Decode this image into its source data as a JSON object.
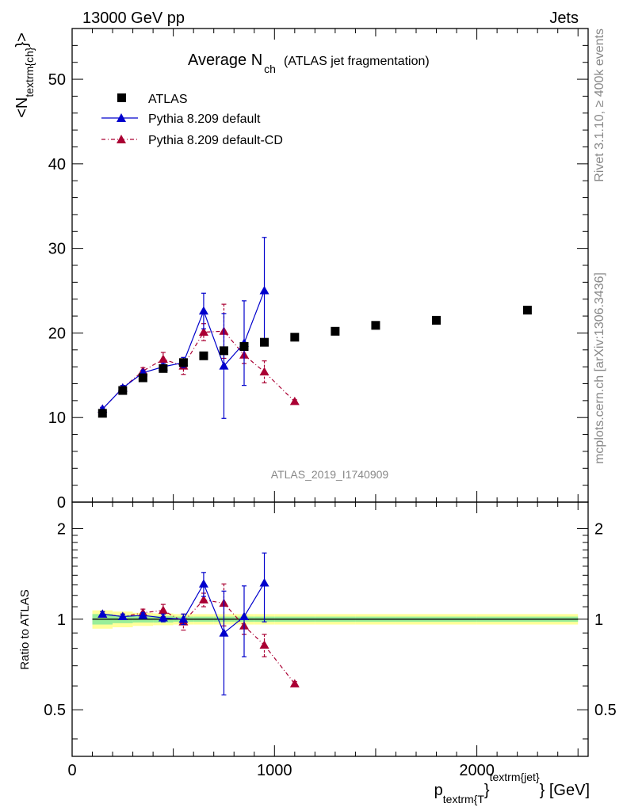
{
  "header": {
    "left": "13000 GeV pp",
    "right": "Jets"
  },
  "title": {
    "main": "Average N",
    "main_sub": "ch",
    "paren": "(ATLAS jet fragmentation)"
  },
  "side_text": {
    "rivet": "Rivet 3.1.10, ≥ 400k events",
    "mcplots": "mcplots.cern.ch [arXiv:1306.3436]"
  },
  "watermark": "ATLAS_2019_I1740909",
  "ylabel_main": {
    "prefix": "<N",
    "sub": "textrm{ch}",
    "suffix": "}>"
  },
  "ylabel_ratio": "Ratio to ATLAS",
  "xlabel": {
    "p": "p",
    "sub": "textrm{T",
    "mid": "}",
    "sup": "textrm{jet}",
    "suffix": "} [GeV]"
  },
  "legend": {
    "placement": "top-left",
    "entries": [
      {
        "label": "ATLAS",
        "color": "#000000",
        "marker": "square"
      },
      {
        "label": "Pythia 8.209 default",
        "color": "#0000cc",
        "marker": "triangle"
      },
      {
        "label": "Pythia 8.209 default-CD",
        "color": "#aa0033",
        "marker": "triangle"
      }
    ]
  },
  "chart_data": [
    {
      "type": "scatter",
      "panel": "main",
      "xlim": [
        0,
        2550
      ],
      "ylim": [
        0,
        56
      ],
      "y_ticks": [
        10,
        20,
        30,
        40,
        50
      ],
      "y_tick_labels": [
        "10",
        "20",
        "30",
        "40",
        "50"
      ],
      "bottom_tick_label": "0",
      "series": [
        {
          "name": "ATLAS",
          "color": "#000000",
          "x": [
            150,
            250,
            350,
            450,
            550,
            650,
            750,
            850,
            950,
            1100,
            1300,
            1500,
            1800,
            2250
          ],
          "y": [
            10.5,
            13.2,
            14.7,
            15.8,
            16.5,
            17.3,
            17.9,
            18.4,
            18.9,
            19.5,
            20.2,
            20.9,
            21.5,
            22.7
          ]
        },
        {
          "name": "Pythia 8.209 default",
          "color": "#0000cc",
          "x": [
            150,
            250,
            350,
            450,
            550,
            650,
            750,
            850,
            950
          ],
          "y": [
            11.0,
            13.5,
            15.3,
            16.0,
            16.5,
            22.6,
            16.1,
            18.8,
            25.0
          ],
          "err": [
            0.2,
            0.3,
            0.3,
            0.4,
            0.6,
            2.1,
            6.2,
            5.0,
            6.3
          ]
        },
        {
          "name": "Pythia 8.209 default-CD",
          "color": "#aa0033",
          "x": [
            150,
            250,
            350,
            450,
            550,
            650,
            750,
            850,
            950,
            1100
          ],
          "y": [
            11.0,
            13.5,
            15.5,
            16.9,
            16.1,
            20.1,
            20.2,
            17.4,
            15.4,
            11.9
          ],
          "err": [
            0.2,
            0.3,
            0.4,
            0.8,
            1.0,
            1.0,
            3.2,
            1.0,
            1.3,
            0.2
          ]
        }
      ]
    },
    {
      "type": "scatter",
      "panel": "ratio",
      "xlim": [
        0,
        2550
      ],
      "ylim": [
        0.35,
        2.45
      ],
      "y_ticks": [
        0.5,
        1,
        2
      ],
      "y_tick_labels": [
        "0.5",
        "1",
        "2"
      ],
      "x_ticks": [
        0,
        1000,
        2000
      ],
      "x_tick_labels": [
        "0",
        "1000",
        "2000"
      ],
      "band_inner": {
        "color": "#99ee99",
        "x_edges": [
          100,
          200,
          300,
          400,
          500,
          600,
          700,
          800,
          900,
          1000,
          1200,
          1400,
          1600,
          2000,
          2500
        ],
        "half_width": [
          0.04,
          0.03,
          0.025,
          0.025,
          0.02,
          0.02,
          0.02,
          0.02,
          0.02,
          0.02,
          0.02,
          0.02,
          0.02,
          0.02
        ]
      },
      "band_outer": {
        "color": "#ffff99",
        "x_edges": [
          100,
          200,
          300,
          400,
          500,
          600,
          700,
          800,
          900,
          1000,
          1200,
          1400,
          1600,
          2000,
          2500
        ],
        "half_width": [
          0.07,
          0.06,
          0.05,
          0.045,
          0.04,
          0.04,
          0.04,
          0.04,
          0.04,
          0.04,
          0.04,
          0.04,
          0.04,
          0.04
        ]
      },
      "series": [
        {
          "name": "Pythia 8.209 default",
          "color": "#0000cc",
          "x": [
            150,
            250,
            350,
            450,
            550,
            650,
            750,
            850,
            950
          ],
          "y": [
            1.04,
            1.02,
            1.03,
            1.01,
            1.0,
            1.31,
            0.9,
            1.02,
            1.32
          ],
          "err": [
            0.02,
            0.02,
            0.02,
            0.03,
            0.04,
            0.12,
            0.34,
            0.27,
            0.34
          ]
        },
        {
          "name": "Pythia 8.209 default-CD",
          "color": "#aa0033",
          "x": [
            150,
            250,
            350,
            450,
            550,
            650,
            750,
            850,
            950,
            1100
          ],
          "y": [
            1.04,
            1.02,
            1.05,
            1.07,
            0.98,
            1.16,
            1.13,
            0.95,
            0.82,
            0.61
          ],
          "err": [
            0.02,
            0.02,
            0.03,
            0.05,
            0.06,
            0.06,
            0.18,
            0.06,
            0.07,
            0.01
          ]
        }
      ]
    }
  ]
}
